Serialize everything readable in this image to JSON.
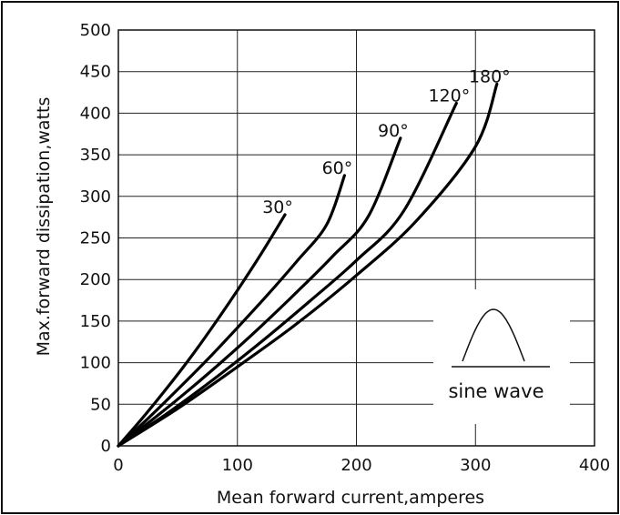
{
  "chart_data": {
    "type": "line",
    "title": "",
    "xlabel": "Mean forward current,amperes",
    "ylabel": "Max.forward dissipation,watts",
    "xlim": [
      0,
      400
    ],
    "ylim": [
      0,
      500
    ],
    "xticks": [
      0,
      100,
      200,
      300,
      400
    ],
    "yticks": [
      0,
      50,
      100,
      150,
      200,
      250,
      300,
      350,
      400,
      450,
      500
    ],
    "grid": true,
    "series": [
      {
        "name": "30°",
        "x": [
          0,
          20,
          40,
          60,
          80,
          100,
          120,
          140
        ],
        "y": [
          0,
          33,
          68,
          105,
          145,
          187,
          231,
          278
        ]
      },
      {
        "name": "60°",
        "x": [
          0,
          25,
          50,
          75,
          100,
          125,
          150,
          175,
          190
        ],
        "y": [
          0,
          33,
          68,
          104,
          142,
          181,
          222,
          266,
          325
        ]
      },
      {
        "name": "90°",
        "x": [
          0,
          30,
          60,
          90,
          120,
          150,
          180,
          210,
          237
        ],
        "y": [
          0,
          33,
          68,
          105,
          144,
          185,
          228,
          276,
          370
        ]
      },
      {
        "name": "120°",
        "x": [
          0,
          40,
          80,
          120,
          160,
          200,
          240,
          284
        ],
        "y": [
          0,
          38,
          80,
          125,
          173,
          223,
          283,
          412
        ]
      },
      {
        "name": "180°",
        "x": [
          0,
          50,
          100,
          150,
          200,
          250,
          300,
          318
        ],
        "y": [
          0,
          45,
          95,
          147,
          205,
          270,
          360,
          435
        ]
      }
    ],
    "inset": {
      "label": "sine wave"
    }
  }
}
